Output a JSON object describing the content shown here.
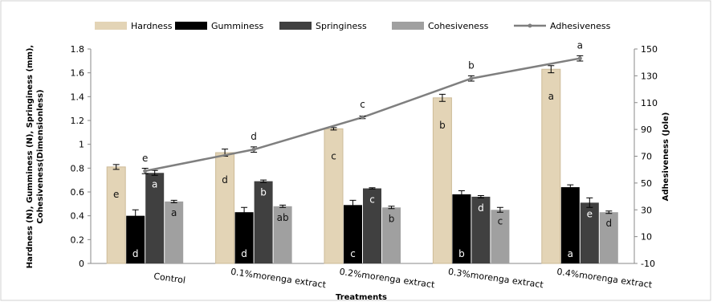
{
  "chart_data": {
    "type": "bar-line",
    "categories": [
      "Control",
      "0.1%morenga extract",
      "0.2%morenga extract",
      "0.3%morenga extract",
      "0.4%morenga extract"
    ],
    "x_label": "Treatments",
    "y_label": [
      "Hardness (N), Gumminess (N), Springiness (mm),",
      "Cohesiveness(Dimensionless)"
    ],
    "y2_label": "Adhesiveness (Jole)",
    "ylim": [
      0,
      1.8
    ],
    "yticks": [
      0,
      0.2,
      0.4,
      0.6,
      0.8,
      1,
      1.2,
      1.4,
      1.6,
      1.8
    ],
    "y2lim": [
      -10,
      150
    ],
    "y2ticks": [
      -10,
      10,
      30,
      50,
      70,
      90,
      110,
      130,
      150
    ],
    "series": [
      {
        "name": "Hardness",
        "color": "#e3d4b6",
        "values": [
          0.81,
          0.93,
          1.13,
          1.39,
          1.63
        ],
        "errors": [
          0.02,
          0.03,
          0.01,
          0.03,
          0.03
        ],
        "letters": [
          "e",
          "d",
          "c",
          "b",
          "a"
        ]
      },
      {
        "name": "Gumminess",
        "color": "#000000",
        "values": [
          0.4,
          0.43,
          0.49,
          0.58,
          0.64
        ],
        "errors": [
          0.05,
          0.04,
          0.04,
          0.03,
          0.02
        ],
        "letters": [
          "d",
          "d",
          "c",
          "b",
          "a"
        ]
      },
      {
        "name": "Springiness",
        "color": "#404040",
        "values": [
          0.76,
          0.69,
          0.63,
          0.56,
          0.51
        ],
        "errors": [
          0.02,
          0.01,
          0.005,
          0.01,
          0.04
        ],
        "letters": [
          "a",
          "b",
          "c",
          "d",
          "e"
        ]
      },
      {
        "name": "Cohesiveness",
        "color": "#a0a0a0",
        "values": [
          0.52,
          0.48,
          0.47,
          0.45,
          0.43
        ],
        "errors": [
          0.01,
          0.01,
          0.01,
          0.02,
          0.01
        ],
        "letters": [
          "a",
          "ab",
          "b",
          "c",
          "d"
        ]
      },
      {
        "name": "Adhesiveness",
        "color": "#7f7f7f",
        "axis": "y2",
        "type": "line",
        "values": [
          59,
          75,
          99,
          128,
          143
        ],
        "errors": [
          2,
          2,
          1,
          2,
          2
        ],
        "letters": [
          "e",
          "d",
          "c",
          "b",
          "a"
        ]
      }
    ]
  }
}
